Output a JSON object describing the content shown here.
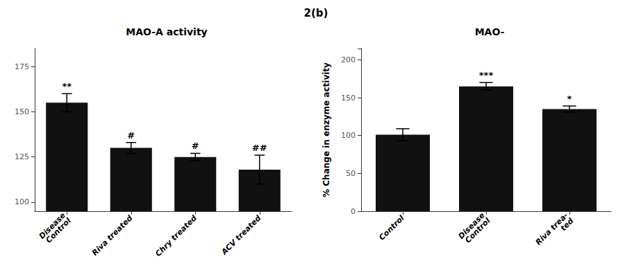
{
  "title": "2(b)",
  "ylabel": "% Change in enzyme activity",
  "chart_data": [
    {
      "type": "bar",
      "title": "MAO-A activity",
      "categories": [
        "Disease\nControl",
        "Riva treated",
        "Chry treated",
        "ACV treated"
      ],
      "values": [
        155,
        130,
        125,
        118
      ],
      "errors": [
        5,
        3,
        2,
        8
      ],
      "annotations": [
        "**",
        "#",
        "#",
        "##"
      ],
      "color": "#111111",
      "ylim": [
        95,
        185
      ],
      "yticks": [
        100,
        125,
        150,
        175
      ],
      "grid": false
    },
    {
      "type": "bar",
      "title": "MAO-",
      "categories": [
        "Control",
        "Disease\nControl",
        "Riva trea-\nted"
      ],
      "values": [
        101,
        165,
        135
      ],
      "errors": [
        8,
        5,
        4
      ],
      "annotations": [
        null,
        "***",
        "*"
      ],
      "color": "#111111",
      "ylim": [
        0,
        215
      ],
      "yticks": [
        0,
        50,
        100,
        150,
        200
      ],
      "grid": false
    }
  ]
}
